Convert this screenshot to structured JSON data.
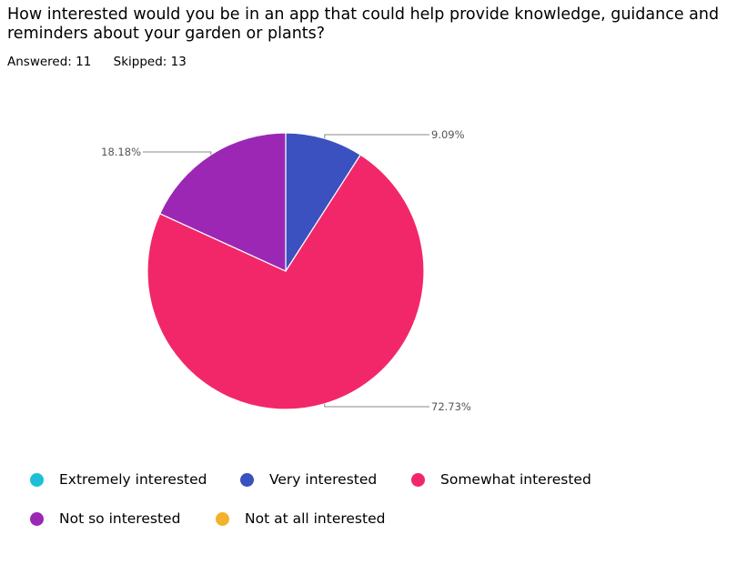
{
  "question": "How interested would you be in an app that could help provide knowledge, guidance and reminders about your garden or plants?",
  "answered": "Answered: 11",
  "skipped": "Skipped: 13",
  "chart_data": {
    "type": "pie",
    "title": "How interested would you be in an app that could help provide knowledge, guidance and reminders about your garden or plants?",
    "slices": [
      {
        "label": "Extremely interested",
        "value": 0,
        "color": "#1bc0d6",
        "display": ""
      },
      {
        "label": "Very interested",
        "value": 9.09,
        "color": "#3b51bf",
        "display": "9.09%"
      },
      {
        "label": "Somewhat interested",
        "value": 72.73,
        "color": "#f2276a",
        "display": "72.73%"
      },
      {
        "label": "Not so interested",
        "value": 18.18,
        "color": "#9b27b4",
        "display": "18.18%"
      },
      {
        "label": "Not at all interested",
        "value": 0,
        "color": "#f2b22a",
        "display": ""
      }
    ],
    "legend_position": "bottom"
  }
}
